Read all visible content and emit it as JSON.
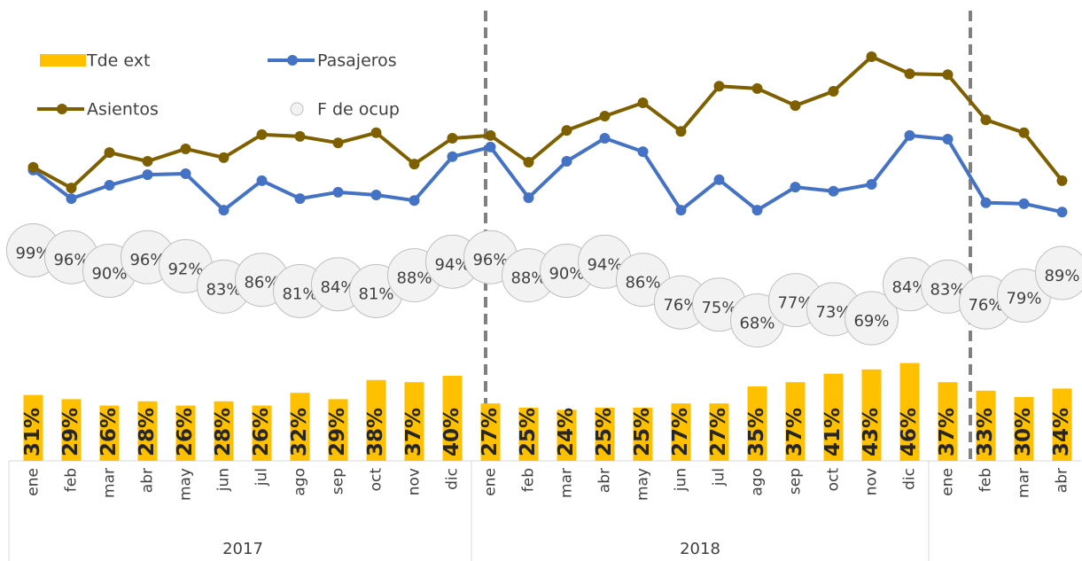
{
  "chart_data": {
    "type": "combo",
    "categories": [
      "ene",
      "feb",
      "mar",
      "abr",
      "may",
      "jun",
      "jul",
      "ago",
      "sep",
      "oct",
      "nov",
      "dic",
      "ene",
      "feb",
      "mar",
      "abr",
      "may",
      "jun",
      "jul",
      "ago",
      "sep",
      "oct",
      "nov",
      "dic",
      "ene",
      "feb",
      "mar",
      "abr"
    ],
    "groups": [
      {
        "label": "2017",
        "size": 12
      },
      {
        "label": "2018",
        "size": 12
      },
      {
        "label": null,
        "size": 4
      }
    ],
    "ylim": [
      0,
      100
    ],
    "y2lim": [
      0,
      100
    ],
    "y3lim": [
      0,
      100
    ],
    "legend": "top-left",
    "series": [
      {
        "name": "Tde ext",
        "type": "bar",
        "axis": "y2",
        "color": "#ffc000",
        "values": [
          31,
          29,
          26,
          28,
          26,
          28,
          26,
          32,
          29,
          38,
          37,
          40,
          27,
          25,
          24,
          25,
          25,
          27,
          27,
          35,
          37,
          41,
          43,
          46,
          37,
          33,
          30,
          34
        ],
        "value_labels": [
          "31%",
          "29%",
          "26%",
          "28%",
          "26%",
          "28%",
          "26%",
          "32%",
          "29%",
          "38%",
          "37%",
          "40%",
          "27%",
          "25%",
          "24%",
          "25%",
          "25%",
          "27%",
          "27%",
          "35%",
          "37%",
          "41%",
          "43%",
          "46%",
          "37%",
          "33%",
          "30%",
          "34%"
        ]
      },
      {
        "name": "Pasajeros",
        "type": "line",
        "color": "#4472c4",
        "values": [
          63.1,
          56.9,
          59.8,
          62.1,
          62.3,
          54.4,
          60.8,
          56.9,
          58.3,
          57.7,
          56.5,
          66.0,
          68.1,
          57.1,
          65.0,
          70.0,
          67.1,
          54.4,
          61.0,
          54.4,
          59.4,
          58.5,
          60.0,
          70.6,
          69.8,
          56.0,
          55.8,
          54.0
        ]
      },
      {
        "name": "Asientos",
        "type": "line",
        "color": "#7f6000",
        "values": [
          63.7,
          59.2,
          66.9,
          65.0,
          67.7,
          65.8,
          70.8,
          70.4,
          69.0,
          71.2,
          64.4,
          70.0,
          70.6,
          64.8,
          71.7,
          74.8,
          77.7,
          71.5,
          81.3,
          80.8,
          77.1,
          80.2,
          87.7,
          84.0,
          83.8,
          74.0,
          71.2,
          60.8
        ]
      },
      {
        "name": "F de ocup",
        "type": "bubble",
        "axis": "y3",
        "color": "#f2f2f2",
        "values": [
          99,
          96,
          90,
          96,
          92,
          83,
          86,
          81,
          84,
          81,
          88,
          94,
          96,
          88,
          90,
          94,
          86,
          76,
          75,
          68,
          77,
          73,
          69,
          84,
          83,
          76,
          79,
          89
        ],
        "value_labels": [
          "99%",
          "96%",
          "90%",
          "96%",
          "92%",
          "83%",
          "86%",
          "81%",
          "84%",
          "81%",
          "88%",
          "94%",
          "96%",
          "88%",
          "90%",
          "94%",
          "86%",
          "76%",
          "75%",
          "68%",
          "77%",
          "73%",
          "69%",
          "84%",
          "83%",
          "76%",
          "79%",
          "89%"
        ]
      }
    ]
  }
}
